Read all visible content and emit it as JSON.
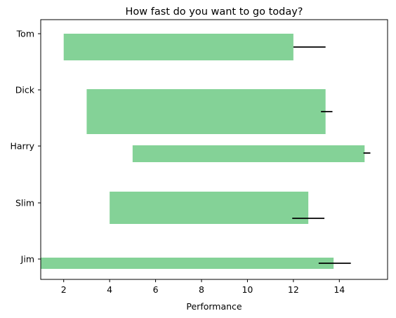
{
  "chart_data": {
    "type": "bar",
    "orientation": "horizontal",
    "title": "How fast do you want to go today?",
    "xlabel": "Performance",
    "ylabel": "",
    "xlim": [
      1,
      16.1
    ],
    "xticks": [
      "2",
      "4",
      "6",
      "8",
      "10",
      "12",
      "14"
    ],
    "categories": [
      "Tom",
      "Dick",
      "Harry",
      "Slim",
      "Jim"
    ],
    "bars": [
      {
        "category": "Tom",
        "start": 2,
        "end": 12.0,
        "error_center": 12.7,
        "error_minus": 0.7,
        "error_plus": 0.7
      },
      {
        "category": "Dick",
        "start": 3,
        "end": 13.4,
        "error_center": 13.45,
        "error_minus": 0.25,
        "error_plus": 0.25
      },
      {
        "category": "Harry",
        "start": 5,
        "end": 15.1,
        "error_center": 15.2,
        "error_minus": 0.15,
        "error_plus": 0.15
      },
      {
        "category": "Slim",
        "start": 4,
        "end": 12.65,
        "error_center": 12.65,
        "error_minus": 0.7,
        "error_plus": 0.7
      },
      {
        "category": "Jim",
        "start": 1,
        "end": 13.75,
        "error_center": 13.8,
        "error_minus": 0.7,
        "error_plus": 0.7
      }
    ],
    "bar_color": "#84d297",
    "error_color": "#000000",
    "grid": false,
    "legend": "none"
  }
}
